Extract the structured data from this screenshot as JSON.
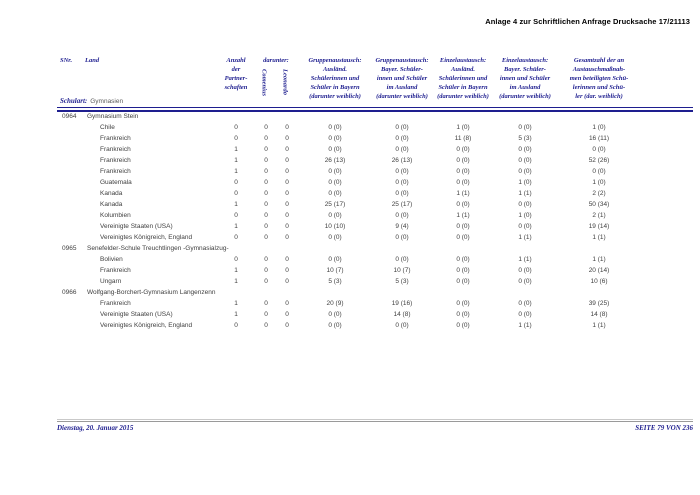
{
  "document": {
    "title": "Anlage 4 zur Schriftlichen Anfrage Drucksache 17/21113",
    "footer": {
      "date": "Dienstag, 20. Januar 2015",
      "page": "SEITE 79 VON 236"
    }
  },
  "colors": {
    "navy": "#1e1e8f",
    "body_text": "#404040",
    "title_text": "#000000",
    "footer_rule_gray": "#9a9a9a"
  },
  "table": {
    "header": {
      "snr": "SNr.",
      "land": "Land",
      "anzahl_partnerschaften": "Anzahl\nder\nPartner-\nschaften",
      "darunter": "darunter:",
      "comenius": "Comenius",
      "leonardo": "Leonardo",
      "gruppenaustausch_ausland": "Gruppenaustausch:\nAusländ.\nSchülerinnen und\nSchüler in Bayern\n(darunter weiblich)",
      "gruppenaustausch_bayern": "Gruppenaustausch:\nBayer. Schüler-\ninnen und Schüler\nim Ausland\n(darunter weiblich)",
      "einzelaustausch_ausland": "Einzelaustausch:\nAusländ.\nSchülerinnen und\nSchüler in Bayern\n(darunter weiblich)",
      "einzelaustausch_bayern": "Einzelaustausch:\nBayer. Schüler-\ninnen und Schüler\nim Ausland\n(darunter weiblich)",
      "gesamtzahl": "Gesamtzahl der an\nAustauschmaßnah-\nmen beteiligten Schü-\nlerinnen und Schü-\nler (dar. weiblich)"
    },
    "schulart": {
      "label": "Schulart:",
      "value": "Gymnasien"
    },
    "sections": [
      {
        "snr": "0964",
        "name": "Gymnasium Stein",
        "rows": [
          {
            "land": "Chile",
            "values": [
              "0",
              "0",
              "0",
              "0 (0)",
              "0 (0)",
              "1 (0)",
              "0 (0)",
              "1 (0)"
            ]
          },
          {
            "land": "Frankreich",
            "values": [
              "0",
              "0",
              "0",
              "0 (0)",
              "0 (0)",
              "11 (8)",
              "5 (3)",
              "16 (11)"
            ]
          },
          {
            "land": "Frankreich",
            "values": [
              "1",
              "0",
              "0",
              "0 (0)",
              "0 (0)",
              "0 (0)",
              "0 (0)",
              "0 (0)"
            ]
          },
          {
            "land": "Frankreich",
            "values": [
              "1",
              "0",
              "0",
              "26 (13)",
              "26 (13)",
              "0 (0)",
              "0 (0)",
              "52 (26)"
            ]
          },
          {
            "land": "Frankreich",
            "values": [
              "1",
              "0",
              "0",
              "0 (0)",
              "0 (0)",
              "0 (0)",
              "0 (0)",
              "0 (0)"
            ]
          },
          {
            "land": "Guatemala",
            "values": [
              "0",
              "0",
              "0",
              "0 (0)",
              "0 (0)",
              "0 (0)",
              "1 (0)",
              "1 (0)"
            ]
          },
          {
            "land": "Kanada",
            "values": [
              "0",
              "0",
              "0",
              "0 (0)",
              "0 (0)",
              "1 (1)",
              "1 (1)",
              "2 (2)"
            ]
          },
          {
            "land": "Kanada",
            "values": [
              "1",
              "0",
              "0",
              "25 (17)",
              "25 (17)",
              "0 (0)",
              "0 (0)",
              "50 (34)"
            ]
          },
          {
            "land": "Kolumbien",
            "values": [
              "0",
              "0",
              "0",
              "0 (0)",
              "0 (0)",
              "1 (1)",
              "1 (0)",
              "2 (1)"
            ]
          },
          {
            "land": "Vereinigte Staaten (USA)",
            "values": [
              "1",
              "0",
              "0",
              "10 (10)",
              "9 (4)",
              "0 (0)",
              "0 (0)",
              "19 (14)"
            ]
          },
          {
            "land": "Vereinigtes Königreich, England",
            "values": [
              "0",
              "0",
              "0",
              "0 (0)",
              "0 (0)",
              "0 (0)",
              "1 (1)",
              "1 (1)"
            ]
          }
        ]
      },
      {
        "snr": "0965",
        "name": "Senefelder-Schule Treuchtlingen -Gymnasialzug-",
        "rows": [
          {
            "land": "Bolivien",
            "values": [
              "0",
              "0",
              "0",
              "0 (0)",
              "0 (0)",
              "0 (0)",
              "1 (1)",
              "1 (1)"
            ]
          },
          {
            "land": "Frankreich",
            "values": [
              "1",
              "0",
              "0",
              "10 (7)",
              "10 (7)",
              "0 (0)",
              "0 (0)",
              "20 (14)"
            ]
          },
          {
            "land": "Ungarn",
            "values": [
              "1",
              "0",
              "0",
              "5 (3)",
              "5 (3)",
              "0 (0)",
              "0 (0)",
              "10 (6)"
            ]
          }
        ]
      },
      {
        "snr": "0966",
        "name": "Wolfgang-Borchert-Gymnasium Langenzenn",
        "rows": [
          {
            "land": "Frankreich",
            "values": [
              "1",
              "0",
              "0",
              "20 (9)",
              "19 (16)",
              "0 (0)",
              "0 (0)",
              "39 (25)"
            ]
          },
          {
            "land": "Vereinigte Staaten (USA)",
            "values": [
              "1",
              "0",
              "0",
              "0 (0)",
              "14 (8)",
              "0 (0)",
              "0 (0)",
              "14 (8)"
            ]
          },
          {
            "land": "Vereinigtes Königreich, England",
            "values": [
              "0",
              "0",
              "0",
              "0 (0)",
              "0 (0)",
              "0 (0)",
              "1 (1)",
              "1 (1)"
            ]
          }
        ]
      }
    ]
  }
}
